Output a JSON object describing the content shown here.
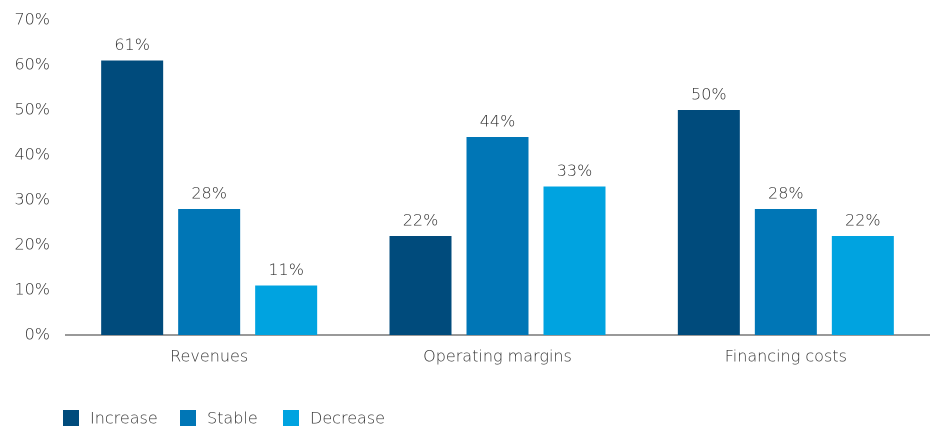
{
  "chart_data": {
    "type": "bar",
    "categories": [
      "Revenues",
      "Operating margins",
      "Financing costs"
    ],
    "series": [
      {
        "name": "Increase",
        "color": "#004b7c",
        "values": [
          61,
          22,
          50
        ],
        "value_labels": [
          "61%",
          "22%",
          "50%"
        ]
      },
      {
        "name": "Stable",
        "color": "#0076b6",
        "values": [
          28,
          44,
          28
        ],
        "value_labels": [
          "28%",
          "44%",
          "28%"
        ]
      },
      {
        "name": "Decrease",
        "color": "#00a3e0",
        "values": [
          11,
          33,
          22
        ],
        "value_labels": [
          "11%",
          "33%",
          "22%"
        ]
      }
    ],
    "ylim": [
      0,
      70
    ],
    "yticks": [
      {
        "value": 0,
        "label": "0%"
      },
      {
        "value": 10,
        "label": "10%"
      },
      {
        "value": 20,
        "label": "20%"
      },
      {
        "value": 30,
        "label": "30%"
      },
      {
        "value": 40,
        "label": "40%"
      },
      {
        "value": 50,
        "label": "50%"
      },
      {
        "value": 60,
        "label": "60%"
      },
      {
        "value": 70,
        "label": "70%"
      }
    ],
    "grid": false,
    "legend": "bottom"
  }
}
